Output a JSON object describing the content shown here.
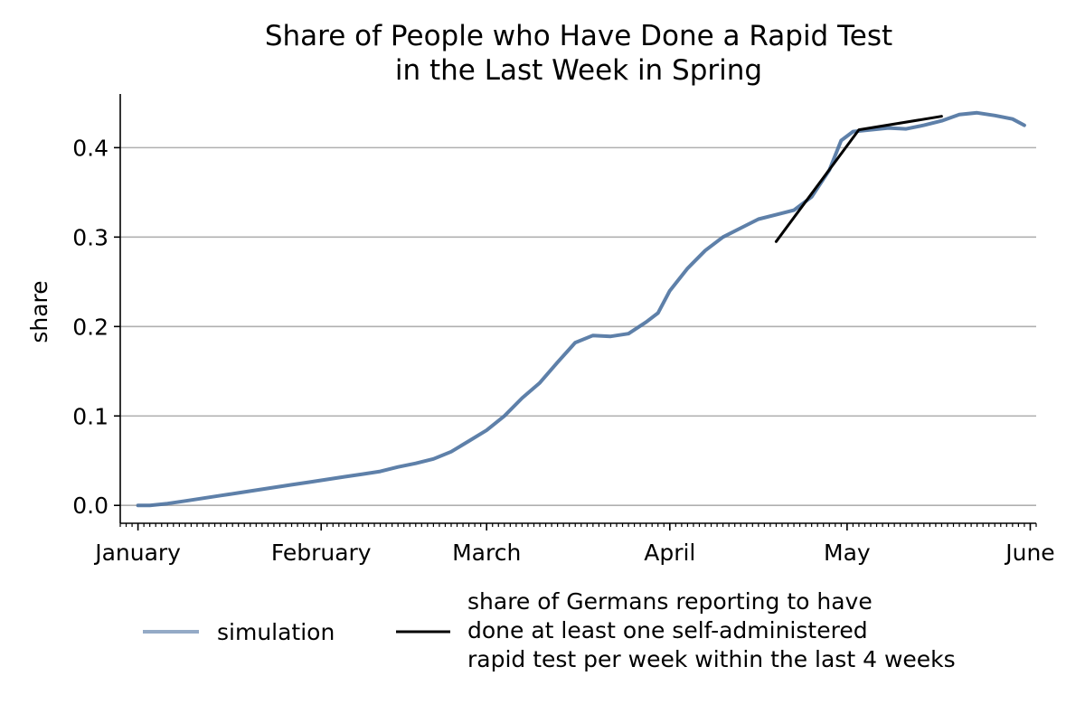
{
  "chart_data": {
    "type": "line",
    "title": "Share of People who Have Done a Rapid Test",
    "title_line2": "in the Last Week in Spring",
    "ylabel": "share",
    "xlabel": "",
    "ylim": [
      -0.02,
      0.46
    ],
    "yticks": [
      0.0,
      0.1,
      0.2,
      0.3,
      0.4
    ],
    "ytick_labels": [
      "0.0",
      "0.1",
      "0.2",
      "0.3",
      "0.4"
    ],
    "xlim": [
      "2021-12-29",
      "2022-06-02"
    ],
    "xticks": [
      "2022-01-01",
      "2022-02-01",
      "2022-03-01",
      "2022-04-01",
      "2022-05-01",
      "2022-06-01"
    ],
    "xtick_labels": [
      "January",
      "February",
      "March",
      "April",
      "May",
      "June"
    ],
    "grid": "horizontal",
    "legend_position": "bottom",
    "series": [
      {
        "name": "simulation",
        "color": "#4c72a0",
        "x": [
          "2022-01-01",
          "2022-01-03",
          "2022-01-06",
          "2022-01-09",
          "2022-01-12",
          "2022-01-15",
          "2022-01-18",
          "2022-01-21",
          "2022-01-24",
          "2022-01-27",
          "2022-01-30",
          "2022-02-02",
          "2022-02-05",
          "2022-02-08",
          "2022-02-11",
          "2022-02-14",
          "2022-02-17",
          "2022-02-20",
          "2022-02-23",
          "2022-02-26",
          "2022-03-01",
          "2022-03-04",
          "2022-03-07",
          "2022-03-10",
          "2022-03-13",
          "2022-03-16",
          "2022-03-19",
          "2022-03-22",
          "2022-03-25",
          "2022-03-28",
          "2022-03-30",
          "2022-04-01",
          "2022-04-04",
          "2022-04-07",
          "2022-04-10",
          "2022-04-13",
          "2022-04-16",
          "2022-04-19",
          "2022-04-22",
          "2022-04-25",
          "2022-04-28",
          "2022-04-30",
          "2022-05-02",
          "2022-05-05",
          "2022-05-08",
          "2022-05-11",
          "2022-05-14",
          "2022-05-17",
          "2022-05-20",
          "2022-05-23",
          "2022-05-26",
          "2022-05-29",
          "2022-05-31"
        ],
        "y": [
          0.0,
          0.0,
          0.002,
          0.005,
          0.008,
          0.011,
          0.014,
          0.017,
          0.02,
          0.023,
          0.026,
          0.029,
          0.032,
          0.035,
          0.038,
          0.043,
          0.047,
          0.052,
          0.06,
          0.072,
          0.084,
          0.1,
          0.12,
          0.137,
          0.16,
          0.182,
          0.19,
          0.189,
          0.192,
          0.205,
          0.215,
          0.24,
          0.265,
          0.285,
          0.3,
          0.31,
          0.32,
          0.325,
          0.33,
          0.345,
          0.375,
          0.408,
          0.418,
          0.42,
          0.422,
          0.421,
          0.425,
          0.43,
          0.437,
          0.439,
          0.436,
          0.432,
          0.425
        ]
      },
      {
        "name": "share of Germans reporting to have done at least one self-administered rapid test per week within the last 4 weeks",
        "color": "#000000",
        "x": [
          "2022-04-19",
          "2022-05-03",
          "2022-05-17"
        ],
        "y": [
          0.295,
          0.42,
          0.435
        ]
      }
    ],
    "legend": {
      "entries": [
        {
          "label_lines": [
            "simulation"
          ]
        },
        {
          "label_lines": [
            "share of Germans reporting to have",
            "done at least one self-administered",
            "rapid test per week within the last 4 weeks"
          ]
        }
      ]
    }
  }
}
